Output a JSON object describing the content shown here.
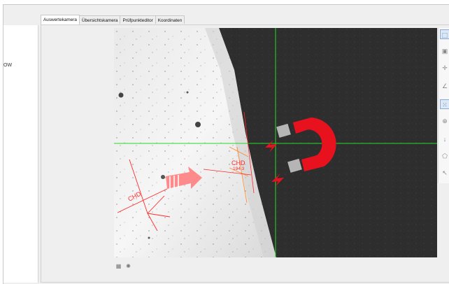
{
  "left_panel": {
    "label": "OW"
  },
  "tabs": [
    {
      "label": "Auswertekamera",
      "active": true
    },
    {
      "label": "Übersichtskamera",
      "active": false
    },
    {
      "label": "Prüfpunkteditor",
      "active": false
    },
    {
      "label": "Koordinaten",
      "active": false
    }
  ],
  "viewer": {
    "annotations": {
      "chd_left": "CHD",
      "chd_right": "CHD",
      "chd_value": "194.3"
    },
    "colors": {
      "crosshair": "#22dd22",
      "measure": "#ff2a2a",
      "arrow": "#ff8080",
      "magnet": "#e8121e"
    }
  },
  "toolbar": {
    "tools": [
      {
        "icon": "select-rect-icon",
        "glyph": "⬚",
        "selected": true
      },
      {
        "icon": "camera-icon",
        "glyph": "▣",
        "selected": false
      },
      {
        "icon": "move-icon",
        "glyph": "✛",
        "selected": false
      },
      {
        "icon": "measure-angle-icon",
        "glyph": "∠",
        "selected": false
      },
      {
        "icon": "points-icon",
        "glyph": "⁙",
        "selected": true
      },
      {
        "icon": "crosshair-target-icon",
        "glyph": "⊕",
        "selected": false
      },
      {
        "icon": "arrow-down-icon",
        "glyph": "↓",
        "selected": false
      },
      {
        "icon": "polygon-icon",
        "glyph": "⬠",
        "selected": false
      },
      {
        "icon": "pointer-icon",
        "glyph": "↖",
        "selected": false
      }
    ]
  },
  "bottom_tools": [
    {
      "icon": "grid-icon",
      "glyph": "▦"
    },
    {
      "icon": "settings-icon",
      "glyph": "✺"
    }
  ]
}
